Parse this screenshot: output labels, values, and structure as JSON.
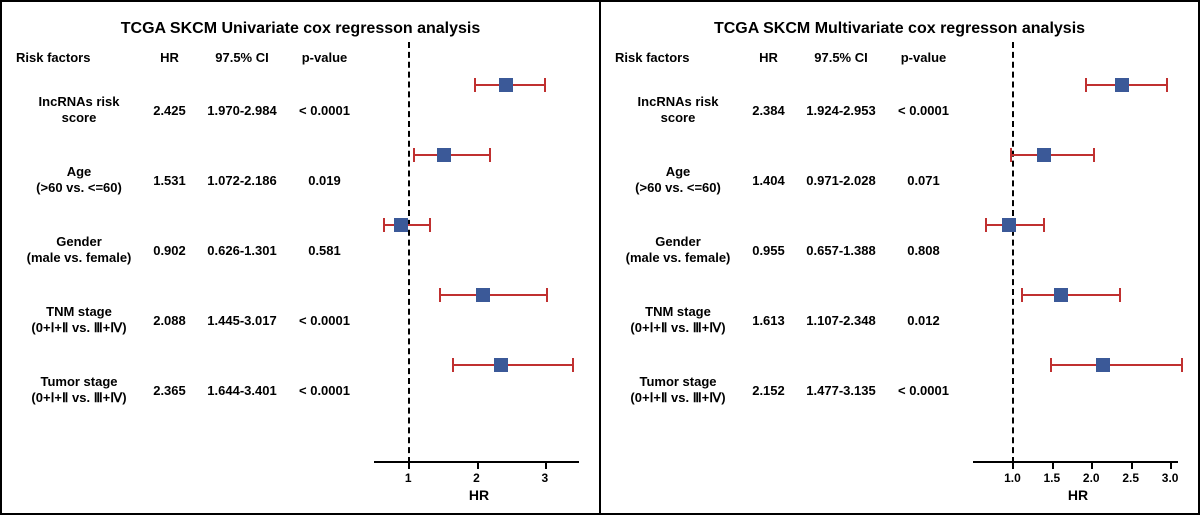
{
  "layout": {
    "panels": [
      "univariate",
      "multivariate"
    ]
  },
  "colors": {
    "whisker": "#c03030",
    "marker": "#3b5998",
    "axis": "#000000",
    "background": "#ffffff"
  },
  "headers": {
    "factor": "Risk factors",
    "hr": "HR",
    "ci": "97.5% CI",
    "pval": "p-value"
  },
  "univariate": {
    "title": "TCGA SKCM Univariate cox regresson analysis",
    "axis_label": "HR",
    "axis": {
      "min": 0.5,
      "max": 3.5,
      "ticks": [
        1,
        2,
        3
      ],
      "ref": 1,
      "tick_labels": [
        "1",
        "2",
        "3"
      ]
    },
    "rows": [
      {
        "factor_l1": "IncRNAs risk",
        "factor_l2": "score",
        "hr": "2.425",
        "ci": "1.970-2.984",
        "pval": "< 0.0001",
        "point": 2.425,
        "lo": 1.97,
        "hi": 2.984
      },
      {
        "factor_l1": "Age",
        "factor_l2": "(>60 vs. <=60)",
        "hr": "1.531",
        "ci": "1.072-2.186",
        "pval": "0.019",
        "point": 1.531,
        "lo": 1.072,
        "hi": 2.186
      },
      {
        "factor_l1": "Gender",
        "factor_l2": "(male vs. female)",
        "hr": "0.902",
        "ci": "0.626-1.301",
        "pval": "0.581",
        "point": 0.902,
        "lo": 0.626,
        "hi": 1.301
      },
      {
        "factor_l1": "TNM stage",
        "factor_l2": "(0+Ⅰ+Ⅱ vs. Ⅲ+Ⅳ)",
        "hr": "2.088",
        "ci": "1.445-3.017",
        "pval": "< 0.0001",
        "point": 2.088,
        "lo": 1.445,
        "hi": 3.017
      },
      {
        "factor_l1": "Tumor stage",
        "factor_l2": "(0+Ⅰ+Ⅱ vs. Ⅲ+Ⅳ)",
        "hr": "2.365",
        "ci": "1.644-3.401",
        "pval": "< 0.0001",
        "point": 2.365,
        "lo": 1.644,
        "hi": 3.401
      }
    ]
  },
  "multivariate": {
    "title": "TCGA SKCM Multivariate cox regresson analysis",
    "axis_label": "HR",
    "axis": {
      "min": 0.5,
      "max": 3.1,
      "ticks": [
        1.0,
        1.5,
        2.0,
        2.5,
        3.0
      ],
      "ref": 1.0,
      "tick_labels": [
        "1.0",
        "1.5",
        "2.0",
        "2.5",
        "3.0"
      ]
    },
    "rows": [
      {
        "factor_l1": "IncRNAs risk",
        "factor_l2": "score",
        "hr": "2.384",
        "ci": "1.924-2.953",
        "pval": "< 0.0001",
        "point": 2.384,
        "lo": 1.924,
        "hi": 2.953
      },
      {
        "factor_l1": "Age",
        "factor_l2": "(>60 vs. <=60)",
        "hr": "1.404",
        "ci": "0.971-2.028",
        "pval": "0.071",
        "point": 1.404,
        "lo": 0.971,
        "hi": 2.028
      },
      {
        "factor_l1": "Gender",
        "factor_l2": "(male vs. female)",
        "hr": "0.955",
        "ci": "0.657-1.388",
        "pval": "0.808",
        "point": 0.955,
        "lo": 0.657,
        "hi": 1.388
      },
      {
        "factor_l1": "TNM stage",
        "factor_l2": "(0+Ⅰ+Ⅱ vs. Ⅲ+Ⅳ)",
        "hr": "1.613",
        "ci": "1.107-2.348",
        "pval": "0.012",
        "point": 1.613,
        "lo": 1.107,
        "hi": 2.348
      },
      {
        "factor_l1": "Tumor stage",
        "factor_l2": "(0+Ⅰ+Ⅱ vs. Ⅲ+Ⅳ)",
        "hr": "2.152",
        "ci": "1.477-3.135",
        "pval": "< 0.0001",
        "point": 2.152,
        "lo": 1.477,
        "hi": 3.135
      }
    ]
  }
}
